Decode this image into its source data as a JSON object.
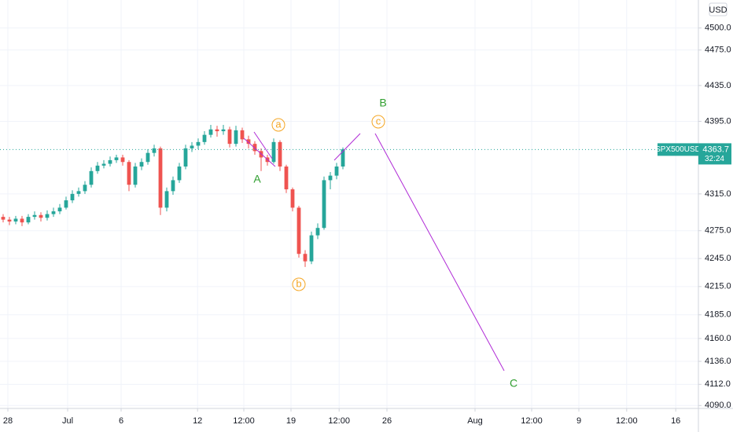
{
  "chart_data": {
    "type": "candlestick",
    "symbol": "SPX500USD",
    "currency": "USD",
    "last_price": 4363.7,
    "countdown": "32:24",
    "log_scale": true,
    "grid": true,
    "up_color": "#26a69a",
    "down_color": "#ef5350",
    "x": [
      0,
      1,
      2,
      3,
      4,
      5,
      6,
      7,
      8,
      9,
      10,
      11,
      12,
      13,
      14,
      15,
      16,
      17,
      18,
      19,
      20,
      21,
      22,
      23,
      24,
      25,
      26,
      27,
      28,
      29,
      30,
      31,
      32,
      33,
      34,
      35,
      36,
      37,
      38,
      39,
      40,
      41,
      42,
      43,
      44,
      45,
      46,
      47,
      48,
      49,
      50,
      51,
      52,
      53,
      54
    ],
    "open": [
      4290,
      4287,
      4285,
      4288,
      4284,
      4290,
      4292,
      4289,
      4293,
      4296,
      4300,
      4308,
      4315,
      4318,
      4325,
      4340,
      4346,
      4348,
      4352,
      4355,
      4350,
      4325,
      4345,
      4350,
      4360,
      4365,
      4300,
      4318,
      4330,
      4345,
      4365,
      4368,
      4372,
      4380,
      4386,
      4384,
      4386,
      4370,
      4385,
      4375,
      4370,
      4362,
      4355,
      4350,
      4372,
      4345,
      4320,
      4300,
      4250,
      4242,
      4270,
      4278,
      4330,
      4335,
      4345
    ],
    "high": [
      4293,
      4290,
      4291,
      4291,
      4293,
      4296,
      4295,
      4297,
      4300,
      4304,
      4312,
      4319,
      4322,
      4329,
      4344,
      4350,
      4352,
      4356,
      4358,
      4358,
      4352,
      4349,
      4354,
      4364,
      4369,
      4367,
      4322,
      4334,
      4349,
      4369,
      4372,
      4376,
      4384,
      4391,
      4390,
      4391,
      4389,
      4390,
      4388,
      4379,
      4373,
      4365,
      4358,
      4376,
      4374,
      4347,
      4322,
      4302,
      4254,
      4274,
      4283,
      4334,
      4339,
      4349,
      4366
    ],
    "low": [
      4284,
      4281,
      4282,
      4280,
      4282,
      4287,
      4285,
      4286,
      4290,
      4293,
      4298,
      4305,
      4312,
      4315,
      4322,
      4337,
      4343,
      4345,
      4349,
      4346,
      4318,
      4322,
      4341,
      4347,
      4356,
      4292,
      4296,
      4314,
      4327,
      4342,
      4361,
      4364,
      4369,
      4377,
      4378,
      4380,
      4366,
      4367,
      4371,
      4365,
      4358,
      4340,
      4346,
      4348,
      4340,
      4316,
      4296,
      4246,
      4236,
      4239,
      4266,
      4276,
      4320,
      4331,
      4342
    ],
    "close": [
      4287,
      4285,
      4288,
      4284,
      4290,
      4292,
      4289,
      4293,
      4296,
      4300,
      4308,
      4315,
      4318,
      4325,
      4340,
      4346,
      4348,
      4352,
      4355,
      4350,
      4325,
      4345,
      4350,
      4360,
      4365,
      4300,
      4318,
      4330,
      4345,
      4365,
      4368,
      4372,
      4380,
      4386,
      4384,
      4386,
      4370,
      4385,
      4375,
      4370,
      4362,
      4355,
      4350,
      4372,
      4345,
      4320,
      4300,
      4250,
      4242,
      4270,
      4278,
      4330,
      4335,
      4345,
      4364
    ],
    "xlim": [
      -0.5,
      110.5
    ],
    "xticks": [
      {
        "value": 0.75,
        "label": "28"
      },
      {
        "value": 10.25,
        "label": "Jul"
      },
      {
        "value": 18.75,
        "label": "6"
      },
      {
        "value": 30.9,
        "label": "12"
      },
      {
        "value": 38.25,
        "label": "12:00"
      },
      {
        "value": 45.75,
        "label": "19"
      },
      {
        "value": 53.4,
        "label": "12:00"
      },
      {
        "value": 61,
        "label": "26"
      },
      {
        "value": 75,
        "label": "Aug"
      },
      {
        "value": 84,
        "label": "12:00"
      },
      {
        "value": 91.5,
        "label": "9"
      },
      {
        "value": 99.1,
        "label": "12:00"
      },
      {
        "value": 106.9,
        "label": "16"
      }
    ],
    "ylim": [
      4087,
      4532
    ],
    "yticks": [
      {
        "value": 4500,
        "label": "4500.0"
      },
      {
        "value": 4475,
        "label": "4475.0"
      },
      {
        "value": 4435,
        "label": "4435.0"
      },
      {
        "value": 4395,
        "label": "4395.0"
      },
      {
        "value": 4315,
        "label": "4315.0"
      },
      {
        "value": 4275,
        "label": "4275.0"
      },
      {
        "value": 4245,
        "label": "4245.0"
      },
      {
        "value": 4215,
        "label": "4215.0"
      },
      {
        "value": 4185,
        "label": "4185.0"
      },
      {
        "value": 4160,
        "label": "4160.0"
      },
      {
        "value": 4136,
        "label": "4136.0"
      },
      {
        "value": 4112,
        "label": "4112.0"
      },
      {
        "value": 4090,
        "label": "4090.0"
      }
    ],
    "annotations": [
      "a",
      "b",
      "c",
      "A",
      "B",
      "C"
    ]
  }
}
